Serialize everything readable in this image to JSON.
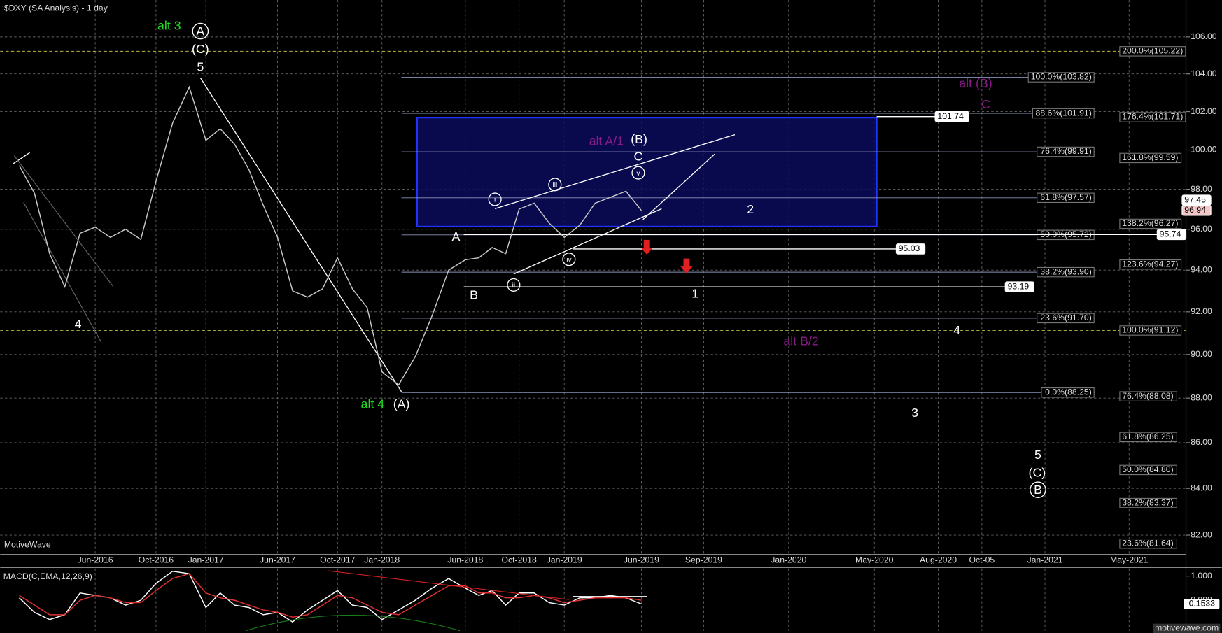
{
  "header": "$DXY (SA Analysis) - 1 day",
  "brand": "MotiveWave",
  "footer": "motivewave.com",
  "chart_data": {
    "type": "line",
    "log_scale": true,
    "grid": true,
    "x": [
      "Jan-2016",
      "Feb-2016",
      "Mar-2016",
      "Apr-2016",
      "May-2016",
      "Jun-2016",
      "Jul-2016",
      "Aug-2016",
      "Sep-2016",
      "Oct-2016",
      "Nov-2016",
      "Dec-2016",
      "Jan-2017",
      "Feb-2017",
      "Mar-2017",
      "Apr-2017",
      "May-2017",
      "Jun-2017",
      "Jul-2017",
      "Aug-2017",
      "Sep-2017",
      "Oct-2017",
      "Nov-2017",
      "Dec-2017",
      "Jan-2018",
      "Feb-2018",
      "Mar-2018",
      "Apr-2018",
      "May-2018",
      "Jun-2018",
      "Jul-2018",
      "Aug-2018",
      "Sep-2018",
      "Oct-2018",
      "Nov-2018",
      "Dec-2018",
      "Jan-2019",
      "Feb-2019",
      "Mar-2019",
      "Apr-2019",
      "May-2019",
      "Jun-2019"
    ],
    "series": [
      {
        "name": "$DXY",
        "color": "#c8c8c8",
        "values": [
          99.2,
          97.8,
          94.8,
          93.2,
          95.8,
          96.1,
          95.6,
          96.0,
          95.5,
          98.4,
          101.4,
          103.3,
          100.5,
          101.1,
          100.3,
          99.0,
          97.2,
          95.6,
          93.0,
          92.7,
          93.1,
          94.6,
          93.1,
          92.2,
          89.2,
          88.6,
          89.9,
          91.8,
          94.0,
          94.5,
          94.6,
          95.1,
          94.8,
          97.0,
          97.3,
          96.3,
          95.6,
          96.2,
          97.3,
          97.6,
          97.9,
          96.94
        ]
      }
    ],
    "ylim": [
      81.19,
      108.04
    ],
    "yticks": [
      {
        "value": 82,
        "label": "82.00"
      },
      {
        "value": 84,
        "label": "84.00"
      },
      {
        "value": 86,
        "label": "86.00"
      },
      {
        "value": 88,
        "label": "88.00"
      },
      {
        "value": 90,
        "label": "90.00"
      },
      {
        "value": 92,
        "label": "92.00"
      },
      {
        "value": 94,
        "label": "94.00"
      },
      {
        "value": 96,
        "label": "96.00"
      },
      {
        "value": 98,
        "label": "98.00"
      },
      {
        "value": 100,
        "label": "100.00"
      },
      {
        "value": 102,
        "label": "102.00"
      },
      {
        "value": 104,
        "label": "104.00"
      },
      {
        "value": 106,
        "label": "106.00"
      }
    ],
    "xticks": [
      "Jun-2016",
      "Oct-2016",
      "Jan-2017",
      "Jun-2017",
      "Oct-2017",
      "Jan-2018",
      "Jun-2018",
      "Oct-2018",
      "Jan-2019",
      "Jun-2019",
      "Sep-2019",
      "Jan-2020",
      "May-2020",
      "Aug-2020",
      {
        "value": "Oct-2020",
        "label": "Oct-05"
      },
      "Jan-2021",
      "May-2021"
    ],
    "fib_levels": [
      {
        "label": "100.0%(103.82)",
        "value": 103.82
      },
      {
        "label": "88.6%(101.91)",
        "value": 101.91
      },
      {
        "label": "76.4%(99.91)",
        "value": 99.91
      },
      {
        "label": "61.8%(97.57)",
        "value": 97.57
      },
      {
        "label": "50.0%(95.72)",
        "value": 95.72
      },
      {
        "label": "38.2%(93.90)",
        "value": 93.9
      },
      {
        "label": "23.6%(91.70)",
        "value": 91.7
      },
      {
        "label": "0.0%(88.25)",
        "value": 88.25
      }
    ],
    "extension_levels": [
      {
        "label": "200.0%(105.22)",
        "value": 105.22,
        "dashed": true
      },
      {
        "label": "176.4%(101.71)",
        "value": 101.71
      },
      {
        "label": "161.8%(99.59)",
        "value": 99.59
      },
      {
        "label": "138.2%(96.27)",
        "value": 96.27
      },
      {
        "label": "123.6%(94.27)",
        "value": 94.27
      },
      {
        "label": "100.0%(91.12)",
        "value": 91.12,
        "dashed": true
      },
      {
        "label": "76.4%(88.08)",
        "value": 88.08
      },
      {
        "label": "61.8%(86.25)",
        "value": 86.25
      },
      {
        "label": "50.0%(84.80)",
        "value": 84.8
      },
      {
        "label": "38.2%(83.37)",
        "value": 83.37
      },
      {
        "label": "23.6%(81.64)",
        "value": 81.64
      }
    ],
    "price_tags": [
      {
        "value": 101.74,
        "color": "#ffffff"
      },
      {
        "value": 95.03,
        "color": "#ffffff"
      },
      {
        "value": 93.19,
        "color": "#ffffff"
      },
      {
        "value": 95.74,
        "color": "#ffffff"
      },
      {
        "value": 97.45,
        "color": "#ffffff"
      },
      {
        "value": 96.94,
        "color": "#f4c8c8"
      }
    ],
    "annotations": [
      {
        "text": "alt 3",
        "color": "#22dd22"
      },
      {
        "text": "A",
        "color": "#ffffff",
        "circled": true
      },
      {
        "text": "(C)",
        "color": "#ffffff"
      },
      {
        "text": "5",
        "color": "#ffffff"
      },
      {
        "text": "4",
        "color": "#ffffff"
      },
      {
        "text": "alt 4",
        "color": "#22dd22"
      },
      {
        "text": "(A)",
        "color": "#ffffff"
      },
      {
        "text": "A",
        "color": "#ffffff"
      },
      {
        "text": "B",
        "color": "#ffffff"
      },
      {
        "text": "alt A/1",
        "color": "#8a1a8a"
      },
      {
        "text": "(B)",
        "color": "#ffffff"
      },
      {
        "text": "C",
        "color": "#ffffff"
      },
      {
        "text": "i",
        "color": "#ffffff",
        "circled": true
      },
      {
        "text": "iii",
        "color": "#ffffff",
        "circled": true
      },
      {
        "text": "v",
        "color": "#ffffff",
        "circled": true
      },
      {
        "text": "ii",
        "color": "#ffffff",
        "circled": true
      },
      {
        "text": "iv",
        "color": "#ffffff",
        "circled": true
      },
      {
        "text": "2",
        "color": "#ffffff"
      },
      {
        "text": "1",
        "color": "#ffffff"
      },
      {
        "text": "4",
        "color": "#ffffff"
      },
      {
        "text": "3",
        "color": "#ffffff"
      },
      {
        "text": "alt (B)",
        "color": "#8a1a8a"
      },
      {
        "text": "C",
        "color": "#8a1a8a"
      },
      {
        "text": "alt B/2",
        "color": "#8a1a8a"
      },
      {
        "text": "5",
        "color": "#ffffff"
      },
      {
        "text": "(C)",
        "color": "#ffffff"
      },
      {
        "text": "B",
        "color": "#ffffff",
        "circled": true
      }
    ],
    "macd": {
      "title": "MACD(C,EMA,12,26,9)",
      "ylim": [
        -1.26,
        1.32
      ],
      "yticks": [
        {
          "value": 1,
          "label": "1.000"
        },
        {
          "value": 0,
          "label": "0.000"
        }
      ],
      "last": {
        "value": -0.1533,
        "label": "-0.1533"
      },
      "series": [
        {
          "name": "MACD",
          "color": "#ffffff",
          "values": [
            0.1,
            -0.5,
            -0.8,
            -0.6,
            0.3,
            0.2,
            0.1,
            -0.2,
            0.0,
            0.7,
            1.2,
            1.1,
            -0.3,
            0.3,
            -0.2,
            -0.3,
            -0.6,
            -0.5,
            -0.9,
            -0.4,
            0.0,
            0.4,
            -0.2,
            -0.3,
            -0.8,
            -0.4,
            0.0,
            0.5,
            0.9,
            0.5,
            0.2,
            0.4,
            -0.2,
            0.3,
            0.3,
            -0.1,
            -0.2,
            0.1,
            0.1,
            0.2,
            0.1,
            -0.15
          ]
        },
        {
          "name": "Signal",
          "color": "#e03030",
          "values": [
            0.2,
            -0.2,
            -0.6,
            -0.6,
            0.0,
            0.2,
            0.1,
            -0.1,
            -0.1,
            0.4,
            0.9,
            1.1,
            0.3,
            0.1,
            0.0,
            -0.2,
            -0.4,
            -0.5,
            -0.7,
            -0.6,
            -0.2,
            0.2,
            0.1,
            -0.2,
            -0.5,
            -0.6,
            -0.2,
            0.2,
            0.6,
            0.6,
            0.3,
            0.3,
            0.1,
            0.1,
            0.2,
            0.1,
            -0.1,
            0.0,
            0.1,
            0.1,
            0.1,
            0.0
          ]
        }
      ]
    }
  }
}
